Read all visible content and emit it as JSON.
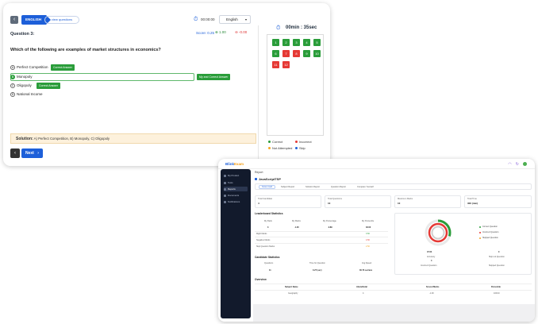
{
  "quiz": {
    "language_tab": "ENGLISH",
    "view_questions": "view questions",
    "elapsed": "00:00:00",
    "language_select": "English",
    "question_title": "Question 3:",
    "marks": {
      "score": "Score: 0.25",
      "plus": "1.00",
      "minus": "-0.00"
    },
    "question_text": "Which of the following are examples of market structures in economics?",
    "options": [
      {
        "letter": "A",
        "text": "Perfect Competition",
        "tag": "Correct Answer",
        "selected": false
      },
      {
        "letter": "B",
        "text": "Monopoly",
        "tag": "My and Correct Answer",
        "selected": true
      },
      {
        "letter": "C",
        "text": "Oligopoly",
        "tag": "Correct Answer",
        "selected": false
      },
      {
        "letter": "D",
        "text": "National Income",
        "tag": "",
        "selected": false
      }
    ],
    "solution_label": "Solution:",
    "solution_text": "A) Perfect Competition, B) Monopoly, C) Oligopoly",
    "next_label": "Next",
    "timer": "00min : 35sec",
    "palette": [
      {
        "n": "1",
        "status": "correct"
      },
      {
        "n": "2",
        "status": "correct"
      },
      {
        "n": "3",
        "status": "correct"
      },
      {
        "n": "4",
        "status": "correct"
      },
      {
        "n": "5",
        "status": "correct"
      },
      {
        "n": "6",
        "status": "correct"
      },
      {
        "n": "7",
        "status": "incorrect"
      },
      {
        "n": "8",
        "status": "incorrect"
      },
      {
        "n": "9",
        "status": "correct"
      },
      {
        "n": "10",
        "status": "correct"
      },
      {
        "n": "11",
        "status": "incorrect"
      },
      {
        "n": "12",
        "status": "incorrect"
      }
    ],
    "legend": [
      {
        "label": "Correct",
        "color": "#2a9d3a"
      },
      {
        "label": "Incorrect",
        "color": "#e53935"
      },
      {
        "label": "Not Attempted",
        "color": "#f5a623"
      },
      {
        "label": "Skip",
        "color": "#1d5fd9"
      }
    ],
    "colors": {
      "correct": "#2a9d3a",
      "incorrect": "#e53935",
      "accent": "#1d5fd9"
    }
  },
  "dash": {
    "logo_main": "Blink",
    "logo_accent": "Exam",
    "sidebar": [
      "My Product",
      "Tests",
      "Reports",
      "Documents",
      "Notifications"
    ],
    "report_title": "Report",
    "report_subtitle": "JavaScriptTSP",
    "tabs": [
      "Score Card",
      "Subject Report",
      "Solution Report",
      "Question Report",
      "Compare Yourself"
    ],
    "stats": [
      {
        "label": "Total Candidate",
        "value": "4"
      },
      {
        "label": "Total Questions",
        "value": "10"
      },
      {
        "label": "Maximum Marks",
        "value": "10"
      },
      {
        "label": "Total Time",
        "value": "300 (min)"
      }
    ],
    "leaderboard": {
      "title": "Leaderboard Statistics",
      "headers": [
        "My Rank",
        "My Marks",
        "My Percentage",
        "My Percentile"
      ],
      "values": [
        "3",
        "-1.00",
        "-3.89",
        "33.00"
      ],
      "rows": [
        {
          "label": "Right Marks",
          "value": "3.50"
        },
        {
          "label": "Negative Marks",
          "value": "4.50"
        },
        {
          "label": "Skip Question Marks",
          "value": "2.50"
        }
      ]
    },
    "candidate": {
      "title": "Candidate Statistics",
      "headers": [
        "Questions",
        "Time for Question",
        "Avg Speed"
      ],
      "values": [
        "11",
        "0.27 (sec)",
        "30.73 sec/ans"
      ]
    },
    "donut": {
      "legend": [
        "Correct Question",
        "Incorrect Question",
        "Skipped Question"
      ],
      "center": "47.64",
      "left_label": "Accuracy",
      "left_sub": "Incorrect Question",
      "right_label": "Skip out Question",
      "right_value": "0",
      "right_sub": "Skipped Question",
      "left_value": "4"
    },
    "overview": {
      "title": "Overview",
      "headers": [
        "Subject Name",
        "Attend/total",
        "Scored Marks",
        "Percentile"
      ],
      "row": [
        "Geography",
        "4",
        "-1.00",
        "100/10"
      ]
    }
  }
}
